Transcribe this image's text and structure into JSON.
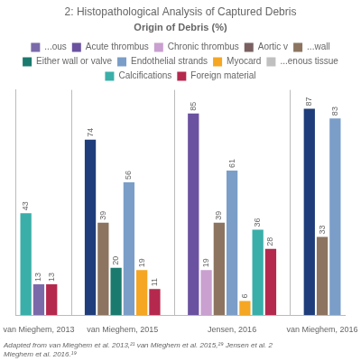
{
  "chart_data": {
    "type": "bar",
    "title": "2: Histopathological Analysis of Captured Debris",
    "subtitle": "Origin of Debris (%)",
    "categories": [
      "van Mieghem, 2013",
      "van Mieghem, 2015",
      "Jensen, 2016",
      "van Mieghem, 2016"
    ],
    "values": [
      [
        43,
        13,
        13
      ],
      [
        74,
        39,
        20,
        56,
        19,
        11
      ],
      [
        85,
        19,
        39,
        61,
        6,
        36,
        28
      ],
      [
        87,
        33,
        83
      ]
    ],
    "colors": [
      [
        "#3aafa9",
        "#7b6aaa",
        "#b5294e"
      ],
      [
        "#1f3d7a",
        "#8c7460",
        "#1a7a6e",
        "#7b9ec8",
        "#f5a623",
        "#b5294e"
      ],
      [
        "#6b52a0",
        "#c9a0d0",
        "#8c7460",
        "#7b9ec8",
        "#f5a623",
        "#3aafa9",
        "#b5294e"
      ],
      [
        "#1f3d7a",
        "#8c7460",
        "#7b9ec8"
      ]
    ],
    "legend_entries": [
      {
        "name": "...ous",
        "color": "#7b6aaa"
      },
      {
        "name": "Acute thrombus",
        "color": "#6b52a0"
      },
      {
        "name": "Chronic thrombus",
        "color": "#c9a0d0"
      },
      {
        "name": "Aortic v",
        "color": "#7a6060"
      },
      {
        "name": "...wall",
        "color": "#8c7460"
      },
      {
        "name": "Either wall or valve",
        "color": "#1a7a6e"
      },
      {
        "name": "Endothelial strands",
        "color": "#7b9ec8"
      },
      {
        "name": "Myocard",
        "color": "#f5a623"
      },
      {
        "name": "...enous tissue",
        "color": "#c0c0c0"
      },
      {
        "name": "Calcifications",
        "color": "#3aafa9"
      },
      {
        "name": "Foreign material",
        "color": "#b5294e"
      }
    ],
    "footnote": "Adapted from van Mieghem et al. 2013,²¹ van Mieghem et al. 2015,²⁹ Jensen et al. 2\nMieghem et al. 2016.¹⁹",
    "ylim": [
      0,
      95
    ],
    "tick_labels": "x",
    "grid": false,
    "data_labels": true
  }
}
